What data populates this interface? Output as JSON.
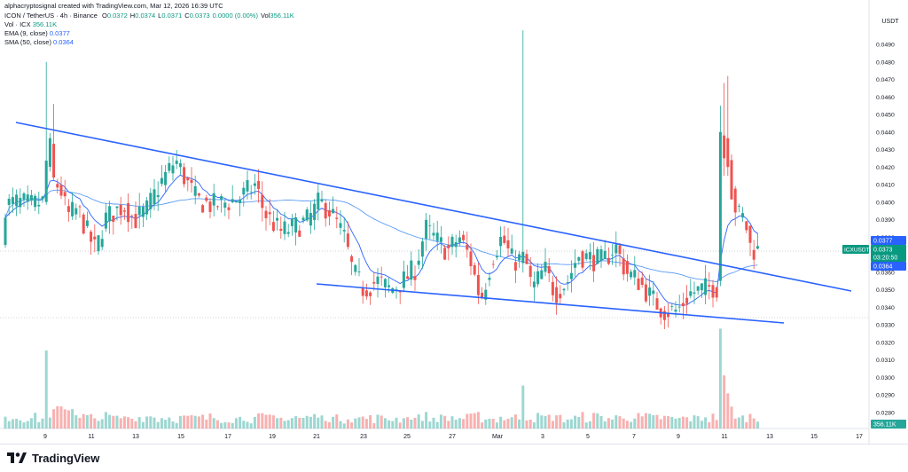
{
  "credit": "alphacryptosignal created with TradingView.com, Mar 12, 2026 16:39 UTC",
  "header": {
    "symbol_line": "ICON / TetherUS · 4h · Binance",
    "ohlc": [
      {
        "k": "O",
        "v": "0.0372"
      },
      {
        "k": "H",
        "v": "0.0374"
      },
      {
        "k": "L",
        "v": "0.0371"
      },
      {
        "k": "C",
        "v": "0.0373"
      },
      {
        "k": "",
        "v": "0.0000 (0.00%)"
      },
      {
        "k": "Vol",
        "v": "356.11K"
      }
    ],
    "vol_label": "Vol · ICX",
    "vol_value": "356.11K",
    "ema_label": "EMA (9, close)",
    "ema_value": "0.0377",
    "sma_label": "SMA (50, close)",
    "sma_value": "0.0364"
  },
  "brand": "TradingView",
  "colors": {
    "up": "#26a69a",
    "down": "#ef5350",
    "trendline": "#2962ff",
    "ema": "#2962ff",
    "sma": "#5b9cf6",
    "price_label": "#089981",
    "sma_label": "#2962ff"
  },
  "chart_data": {
    "type": "candlestick",
    "currency": "USDT",
    "symbol_tag": "ICXUSDT",
    "last_price_label": "0.0373",
    "countdown": "03:20:50",
    "ema_tag": "0.0377",
    "sma_tag": "0.0364",
    "volume_tag": "356.11K",
    "y_ticks": [
      "0.0490",
      "0.0480",
      "0.0470",
      "0.0460",
      "0.0450",
      "0.0440",
      "0.0430",
      "0.0420",
      "0.0410",
      "0.0400",
      "0.0390",
      "0.0380",
      "0.0370",
      "0.0360",
      "0.0350",
      "0.0340",
      "0.0330",
      "0.0320",
      "0.0310",
      "0.0300",
      "0.0290",
      "0.0280"
    ],
    "ylim": [
      0.0275,
      0.05
    ],
    "x_ticks": [
      "9",
      "11",
      "13",
      "15",
      "17",
      "19",
      "21",
      "23",
      "25",
      "27",
      "Mar",
      "3",
      "5",
      "7",
      "9",
      "11",
      "13",
      "15",
      "17"
    ],
    "grid": false,
    "legend": "top-left"
  }
}
